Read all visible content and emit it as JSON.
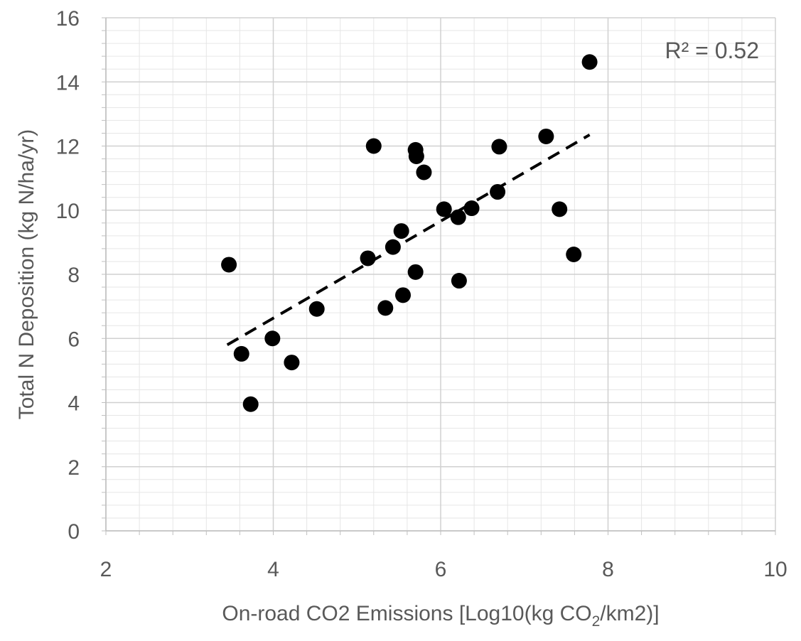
{
  "chart_data": {
    "type": "scatter",
    "xlabel": "On-road CO2 Emissions [Log10(kg CO",
    "xlabel_sub": "2",
    "xlabel_tail": "/km2)]",
    "ylabel": "Total N Deposition (kg N/ha/yr)",
    "xlim": [
      2,
      10
    ],
    "ylim": [
      0,
      16
    ],
    "x_ticks": [
      "2",
      "4",
      "6",
      "8",
      "10"
    ],
    "y_ticks": [
      "0",
      "2",
      "4",
      "6",
      "8",
      "10",
      "12",
      "14",
      "16"
    ],
    "grid": true,
    "minor_grid": true,
    "annotation": "R² = 0.52",
    "marker_color": "#000000",
    "trendline": {
      "style": "dashed",
      "x": [
        3.45,
        7.78
      ],
      "y": [
        5.8,
        12.35
      ]
    },
    "points": [
      {
        "x": 3.47,
        "y": 8.3
      },
      {
        "x": 3.62,
        "y": 5.52
      },
      {
        "x": 3.73,
        "y": 3.95
      },
      {
        "x": 3.99,
        "y": 6.0
      },
      {
        "x": 4.22,
        "y": 5.25
      },
      {
        "x": 4.52,
        "y": 6.92
      },
      {
        "x": 5.13,
        "y": 8.5
      },
      {
        "x": 5.2,
        "y": 12.0
      },
      {
        "x": 5.34,
        "y": 6.95
      },
      {
        "x": 5.43,
        "y": 8.85
      },
      {
        "x": 5.53,
        "y": 9.35
      },
      {
        "x": 5.55,
        "y": 7.35
      },
      {
        "x": 5.7,
        "y": 11.88
      },
      {
        "x": 5.71,
        "y": 11.68
      },
      {
        "x": 5.7,
        "y": 8.07
      },
      {
        "x": 5.8,
        "y": 11.18
      },
      {
        "x": 6.04,
        "y": 10.03
      },
      {
        "x": 6.21,
        "y": 9.78
      },
      {
        "x": 6.22,
        "y": 7.8
      },
      {
        "x": 6.37,
        "y": 10.06
      },
      {
        "x": 6.68,
        "y": 10.57
      },
      {
        "x": 6.7,
        "y": 11.98
      },
      {
        "x": 7.26,
        "y": 12.3
      },
      {
        "x": 7.42,
        "y": 10.03
      },
      {
        "x": 7.59,
        "y": 8.62
      },
      {
        "x": 7.78,
        "y": 14.62
      }
    ]
  }
}
